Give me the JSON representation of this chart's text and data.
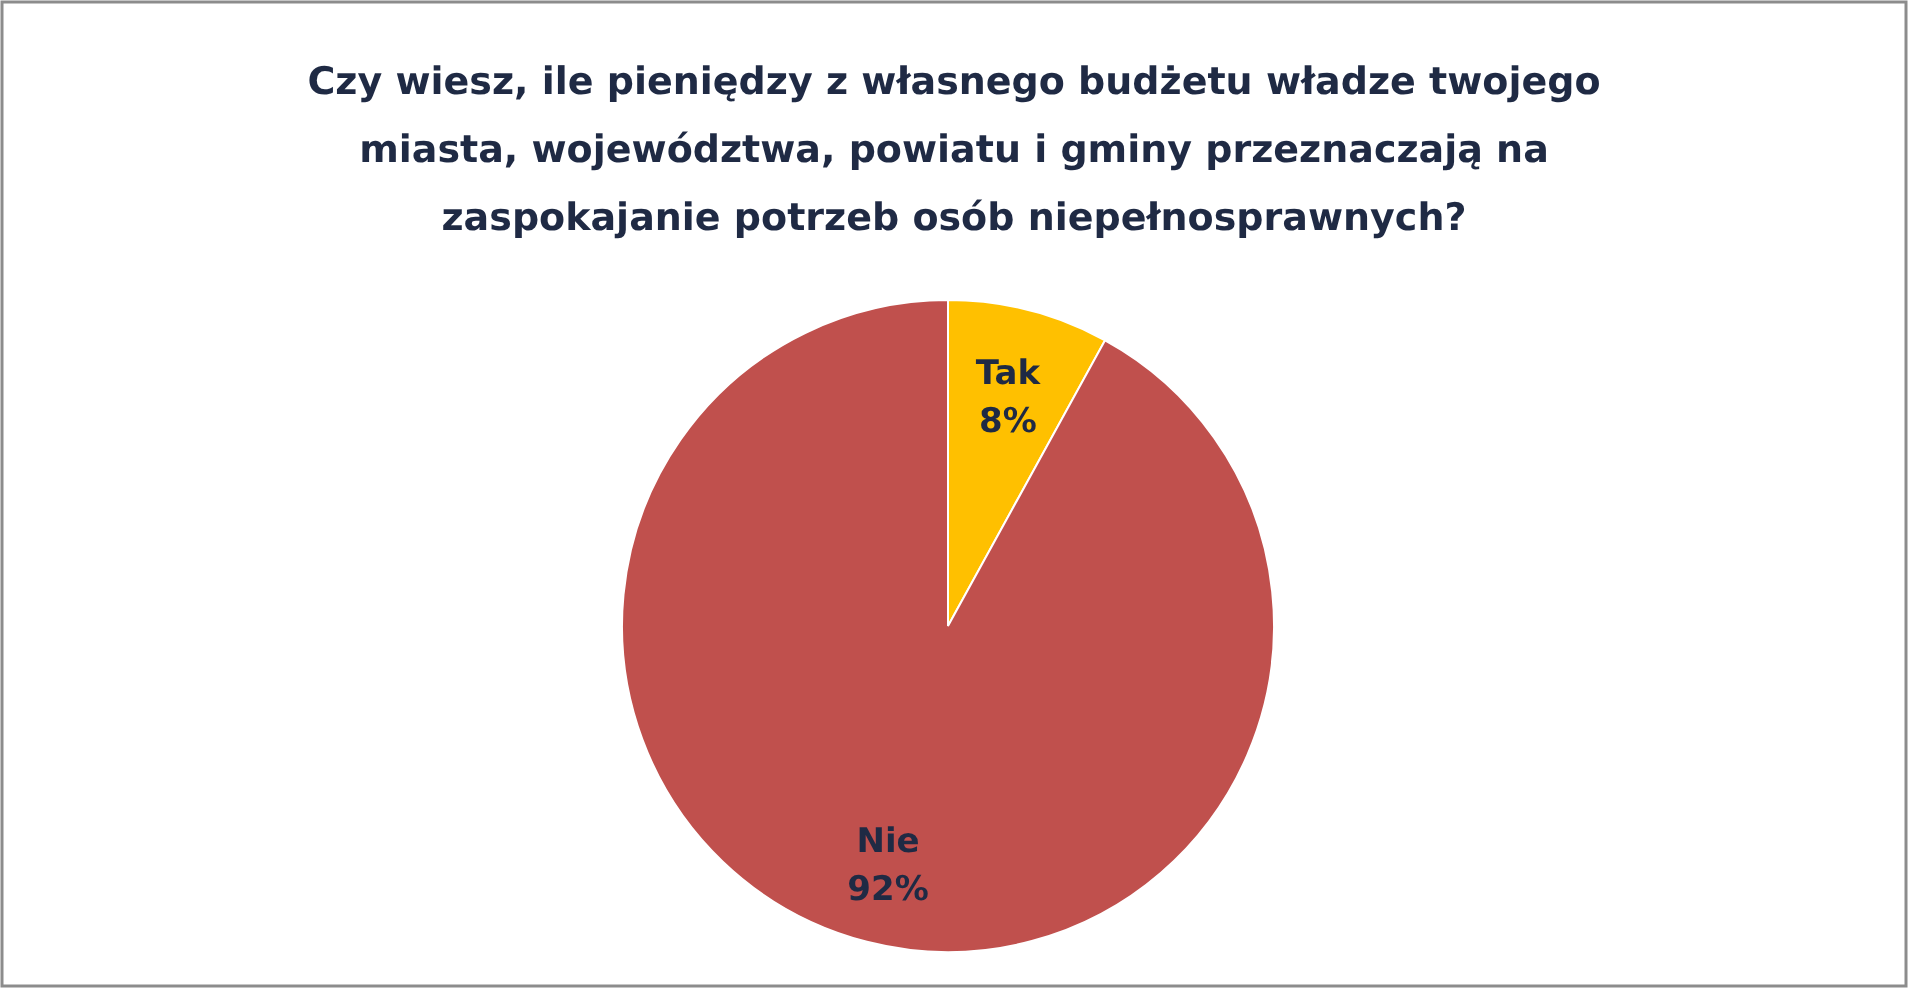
{
  "chart_data": {
    "type": "pie",
    "title": "Czy wiesz, ile pieniędzy z własnego budżetu władze twojego miasta, województwa, powiatu i gminy przeznaczają na zaspokajanie potrzeb osób niepełnosprawnych?",
    "categories": [
      "Tak",
      "Nie"
    ],
    "values": [
      8,
      92
    ],
    "colors": [
      "#ffc000",
      "#c0504d"
    ],
    "value_labels": [
      "8%",
      "92%"
    ]
  }
}
